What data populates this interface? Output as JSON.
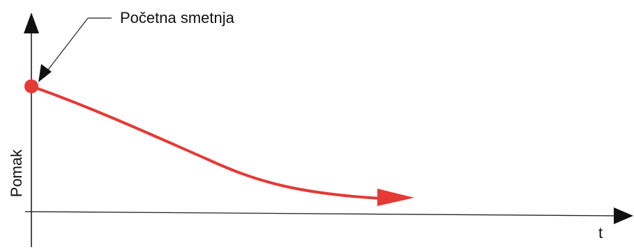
{
  "diagram": {
    "annotation_label": "Početna smetnja",
    "y_axis_label": "Pomak",
    "x_axis_label": "t",
    "colors": {
      "curve": "#e53935",
      "axis": "#111111",
      "background": "#ffffff",
      "guide_line": "#bdbdbd"
    }
  }
}
